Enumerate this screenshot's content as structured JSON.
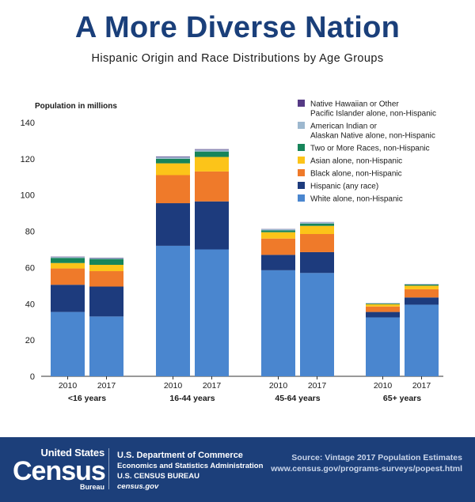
{
  "page": {
    "title": "A More Diverse Nation",
    "subtitle": "Hispanic Origin and Race Distributions by Age Groups"
  },
  "colors": {
    "title": "#1a3f7a",
    "text": "#1a1a1a",
    "footer_bg": "#1c3f7a"
  },
  "chart_data": {
    "type": "bar",
    "stacked": true,
    "ylabel": "Population in millions",
    "ylim": [
      0,
      140
    ],
    "yticks": [
      0,
      20,
      40,
      60,
      80,
      100,
      120,
      140
    ],
    "grid": false,
    "legend_position": "top-right",
    "groups": [
      {
        "label": "<16 years",
        "bars": [
          "2010",
          "2017"
        ]
      },
      {
        "label": "16-44 years",
        "bars": [
          "2010",
          "2017"
        ]
      },
      {
        "label": "45-64 years",
        "bars": [
          "2010",
          "2017"
        ]
      },
      {
        "label": "65+ years",
        "bars": [
          "2010",
          "2017"
        ]
      }
    ],
    "series": [
      {
        "name": "White alone, non-Hispanic",
        "color": "#4a86cf",
        "values": [
          35.5,
          33.0,
          72.0,
          70.0,
          58.5,
          57.0,
          32.5,
          39.5
        ]
      },
      {
        "name": "Hispanic (any race)",
        "color": "#1d3b7d",
        "values": [
          15.0,
          16.5,
          23.5,
          26.5,
          8.5,
          11.5,
          3.0,
          4.0
        ]
      },
      {
        "name": "Black alone, non-Hispanic",
        "color": "#ef7a2a",
        "values": [
          9.0,
          8.5,
          15.5,
          16.5,
          9.0,
          10.0,
          3.0,
          4.5
        ]
      },
      {
        "name": "Asian alone, non-Hispanic",
        "color": "#fcc419",
        "values": [
          3.0,
          3.5,
          6.5,
          8.0,
          3.5,
          4.5,
          1.3,
          2.0
        ]
      },
      {
        "name": "Two or More Races, non-Hispanic",
        "color": "#17855a",
        "values": [
          2.8,
          3.2,
          2.5,
          3.0,
          1.0,
          1.2,
          0.4,
          0.6
        ]
      },
      {
        "name": "American Indian or Alaskan Native alone, non-Hispanic",
        "color": "#9db8cf",
        "values": [
          0.5,
          0.5,
          1.0,
          1.0,
          0.7,
          0.8,
          0.2,
          0.3
        ]
      },
      {
        "name": "Native Hawaiian or Other Pacific Islander alone, non-Hispanic",
        "color": "#553a85",
        "values": [
          0.2,
          0.2,
          0.3,
          0.3,
          0.1,
          0.1,
          0.05,
          0.05
        ]
      }
    ],
    "legend_lines": [
      [
        "Native Hawaiian or Other",
        "Pacific Islander alone, non-Hispanic"
      ],
      [
        "American Indian or",
        "Alaskan Native alone, non-Hispanic"
      ],
      [
        "Two or More Races, non-Hispanic"
      ],
      [
        "Asian alone, non-Hispanic"
      ],
      [
        "Black alone, non-Hispanic"
      ],
      [
        "Hispanic (any race)"
      ],
      [
        "White alone, non-Hispanic"
      ]
    ],
    "legend_colors": [
      "#553a85",
      "#9db8cf",
      "#17855a",
      "#fcc419",
      "#ef7a2a",
      "#1d3b7d",
      "#4a86cf"
    ]
  },
  "footer": {
    "logo_line1": "United States",
    "logo_line2": "Census",
    "logo_line3": "Bureau",
    "dept": "U.S. Department of Commerce",
    "admin": "Economics and Statistics Administration",
    "bureau": "U.S. CENSUS BUREAU",
    "website": "census.gov",
    "source_line1": "Source: Vintage 2017 Population Estimates",
    "source_line2": "www.census.gov/programs-surveys/popest.html"
  }
}
